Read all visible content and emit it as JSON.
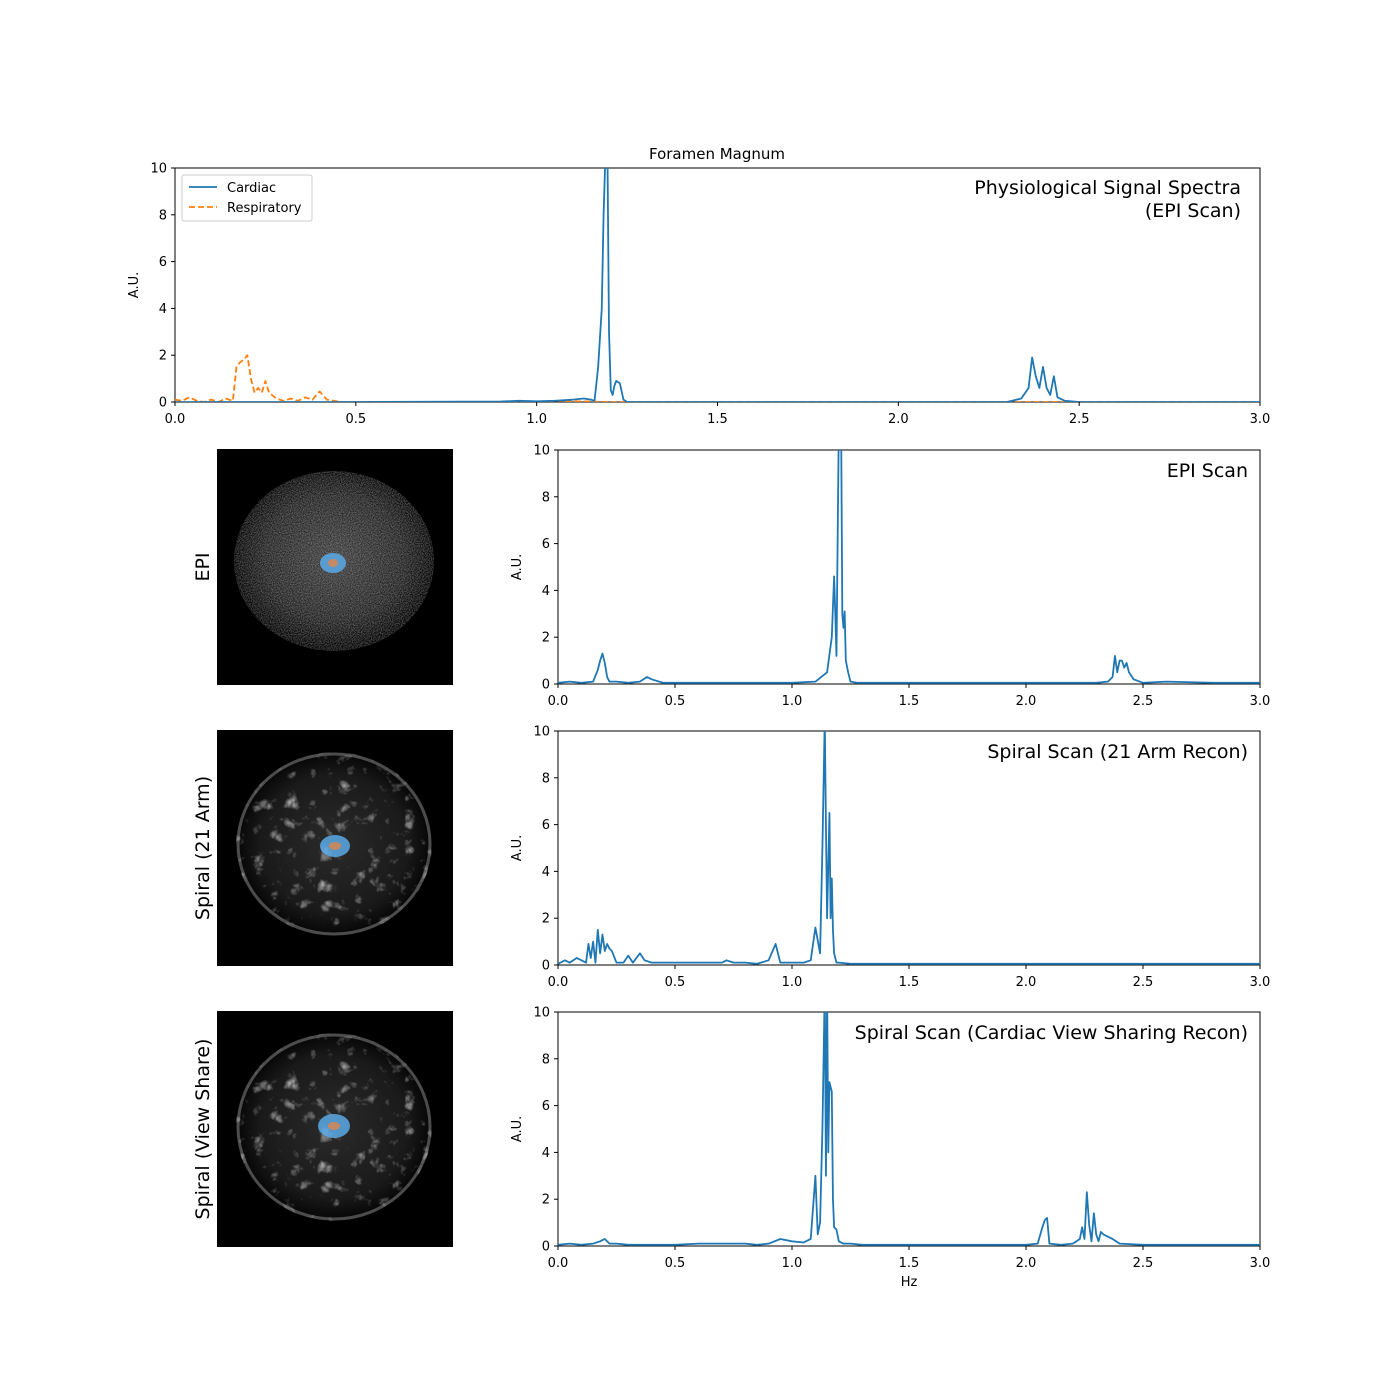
{
  "figure_title": "Foramen Magnum",
  "colors": {
    "cardiac": "#1f77b4",
    "respiratory": "#ff7f0e",
    "roi": "#5aa9e6",
    "roi_center": "#e0864a"
  },
  "chart_data": [
    {
      "type": "line",
      "title": "Foramen Magnum",
      "annotation": [
        "Physiological Signal Spectra",
        "(EPI Scan)"
      ],
      "xlabel": "",
      "ylabel": "A.U.",
      "xlim": [
        0,
        3.0
      ],
      "ylim": [
        0,
        10
      ],
      "xticks": [
        "0.0",
        "0.5",
        "1.0",
        "1.5",
        "2.0",
        "2.5",
        "3.0"
      ],
      "yticks": [
        "0",
        "2",
        "4",
        "6",
        "8",
        "10"
      ],
      "legend": {
        "placement": "top-left",
        "entries": [
          "Cardiac",
          "Respiratory"
        ]
      },
      "series": [
        {
          "name": "Cardiac",
          "style": "solid",
          "color": "#1f77b4",
          "x": [
            0,
            0.5,
            0.9,
            0.95,
            1.0,
            1.05,
            1.1,
            1.13,
            1.15,
            1.16,
            1.17,
            1.18,
            1.185,
            1.19,
            1.195,
            1.2,
            1.205,
            1.21,
            1.215,
            1.22,
            1.23,
            1.24,
            1.25,
            1.3,
            1.5,
            2.0,
            2.3,
            2.34,
            2.36,
            2.37,
            2.38,
            2.39,
            2.4,
            2.41,
            2.42,
            2.43,
            2.44,
            2.46,
            2.5,
            3.0
          ],
          "y": [
            0,
            0,
            0.02,
            0.05,
            0.03,
            0.05,
            0.1,
            0.15,
            0.1,
            0.05,
            1.5,
            4,
            8,
            10.5,
            12,
            3,
            0.5,
            0.3,
            0.7,
            0.9,
            0.8,
            0.1,
            0,
            0,
            0,
            0,
            0,
            0.15,
            0.6,
            1.9,
            1.1,
            0.6,
            1.5,
            0.6,
            0.3,
            1.1,
            0.2,
            0.05,
            0,
            0
          ]
        },
        {
          "name": "Respiratory",
          "style": "dashed",
          "color": "#ff7f0e",
          "x": [
            0,
            0.02,
            0.04,
            0.06,
            0.08,
            0.1,
            0.12,
            0.14,
            0.16,
            0.17,
            0.18,
            0.19,
            0.2,
            0.21,
            0.22,
            0.23,
            0.24,
            0.25,
            0.26,
            0.28,
            0.3,
            0.32,
            0.34,
            0.36,
            0.38,
            0.4,
            0.42,
            0.44,
            0.46,
            0.5,
            1.0,
            1.05,
            1.2,
            1.3,
            3.0
          ],
          "y": [
            0.1,
            0.05,
            0.2,
            0.05,
            0,
            0.1,
            0,
            0.15,
            0.05,
            1.5,
            1.7,
            1.8,
            2.0,
            1.0,
            0.4,
            0.6,
            0.4,
            0.9,
            0.4,
            0.15,
            0.05,
            0.15,
            0.05,
            0.2,
            0.1,
            0.45,
            0.1,
            0.05,
            0,
            0,
            0,
            0.05,
            0,
            0,
            0
          ]
        }
      ]
    },
    {
      "type": "line",
      "panel_label": "EPI",
      "annotation": [
        "EPI Scan"
      ],
      "xlabel": "",
      "ylabel": "A.U.",
      "xlim": [
        0,
        3.0
      ],
      "ylim": [
        0,
        10
      ],
      "xticks": [
        "0.0",
        "0.5",
        "1.0",
        "1.5",
        "2.0",
        "2.5",
        "3.0"
      ],
      "yticks": [
        "0",
        "2",
        "4",
        "6",
        "8",
        "10"
      ],
      "series": [
        {
          "color": "#1f77b4",
          "x": [
            0,
            0.05,
            0.1,
            0.15,
            0.17,
            0.18,
            0.19,
            0.2,
            0.21,
            0.22,
            0.25,
            0.3,
            0.35,
            0.38,
            0.4,
            0.45,
            0.5,
            0.7,
            0.9,
            1.0,
            1.1,
            1.15,
            1.17,
            1.18,
            1.185,
            1.19,
            1.2,
            1.21,
            1.215,
            1.22,
            1.225,
            1.23,
            1.24,
            1.25,
            1.28,
            1.35,
            1.5,
            2.0,
            2.3,
            2.35,
            2.37,
            2.38,
            2.39,
            2.4,
            2.41,
            2.42,
            2.43,
            2.44,
            2.46,
            2.5,
            2.6,
            2.8,
            3.0
          ],
          "y": [
            0.05,
            0.1,
            0.05,
            0.1,
            0.6,
            1.0,
            1.3,
            0.9,
            0.3,
            0.1,
            0.1,
            0.05,
            0.1,
            0.3,
            0.2,
            0.05,
            0.05,
            0.05,
            0.05,
            0.05,
            0.1,
            0.5,
            2.0,
            4.6,
            3.0,
            1.2,
            11,
            11,
            3.0,
            2.4,
            3.1,
            1.0,
            0.5,
            0.1,
            0.05,
            0.05,
            0.05,
            0.05,
            0.05,
            0.1,
            0.3,
            1.2,
            0.5,
            1.0,
            1.0,
            0.7,
            0.9,
            0.5,
            0.2,
            0.05,
            0.1,
            0.05,
            0.05
          ]
        }
      ]
    },
    {
      "type": "line",
      "panel_label": "Spiral (21 Arm)",
      "annotation": [
        "Spiral Scan (21 Arm Recon)"
      ],
      "xlabel": "",
      "ylabel": "A.U.",
      "xlim": [
        0,
        3.0
      ],
      "ylim": [
        0,
        10
      ],
      "xticks": [
        "0.0",
        "0.5",
        "1.0",
        "1.5",
        "2.0",
        "2.5",
        "3.0"
      ],
      "yticks": [
        "0",
        "2",
        "4",
        "6",
        "8",
        "10"
      ],
      "series": [
        {
          "color": "#1f77b4",
          "x": [
            0,
            0.03,
            0.05,
            0.08,
            0.1,
            0.12,
            0.13,
            0.14,
            0.15,
            0.16,
            0.17,
            0.18,
            0.19,
            0.2,
            0.21,
            0.22,
            0.23,
            0.25,
            0.28,
            0.3,
            0.32,
            0.35,
            0.37,
            0.4,
            0.45,
            0.5,
            0.6,
            0.7,
            0.72,
            0.75,
            0.8,
            0.85,
            0.9,
            0.93,
            0.95,
            1.0,
            1.05,
            1.08,
            1.1,
            1.12,
            1.13,
            1.14,
            1.145,
            1.15,
            1.16,
            1.165,
            1.17,
            1.175,
            1.18,
            1.19,
            1.2,
            1.25,
            1.3,
            1.5,
            2.0,
            2.5,
            3.0
          ],
          "y": [
            0.05,
            0.2,
            0.1,
            0.3,
            0.2,
            0.1,
            0.9,
            0.3,
            1.0,
            0.1,
            1.5,
            0.5,
            1.3,
            0.6,
            0.9,
            0.7,
            0.6,
            0.1,
            0.1,
            0.4,
            0.1,
            0.5,
            0.2,
            0.1,
            0.1,
            0.1,
            0.1,
            0.1,
            0.2,
            0.1,
            0.1,
            0.05,
            0.2,
            0.9,
            0.1,
            0.1,
            0.1,
            0.2,
            1.6,
            0.5,
            5,
            10.5,
            6,
            2,
            6.5,
            2,
            3.7,
            1.5,
            0.5,
            0.1,
            0.1,
            0.05,
            0.05,
            0.05,
            0.05,
            0.05,
            0.05
          ]
        }
      ]
    },
    {
      "type": "line",
      "panel_label": "Spiral (View Share)",
      "annotation": [
        "Spiral Scan (Cardiac View Sharing Recon)"
      ],
      "xlabel": "Hz",
      "ylabel": "A.U.",
      "xlim": [
        0,
        3.0
      ],
      "ylim": [
        0,
        10
      ],
      "xticks": [
        "0.0",
        "0.5",
        "1.0",
        "1.5",
        "2.0",
        "2.5",
        "3.0"
      ],
      "yticks": [
        "0",
        "2",
        "4",
        "6",
        "8",
        "10"
      ],
      "series": [
        {
          "color": "#1f77b4",
          "x": [
            0,
            0.05,
            0.1,
            0.15,
            0.18,
            0.2,
            0.22,
            0.25,
            0.3,
            0.4,
            0.5,
            0.6,
            0.7,
            0.8,
            0.85,
            0.9,
            0.95,
            1.0,
            1.05,
            1.08,
            1.1,
            1.11,
            1.12,
            1.13,
            1.14,
            1.145,
            1.15,
            1.155,
            1.16,
            1.17,
            1.175,
            1.18,
            1.19,
            1.2,
            1.22,
            1.25,
            1.3,
            1.5,
            1.8,
            2.0,
            2.05,
            2.07,
            2.08,
            2.09,
            2.1,
            2.15,
            2.2,
            2.23,
            2.24,
            2.25,
            2.26,
            2.27,
            2.28,
            2.29,
            2.3,
            2.31,
            2.32,
            2.33,
            2.35,
            2.37,
            2.4,
            2.5,
            3.0
          ],
          "y": [
            0.05,
            0.1,
            0.05,
            0.1,
            0.2,
            0.3,
            0.1,
            0.1,
            0.05,
            0.05,
            0.05,
            0.1,
            0.1,
            0.1,
            0.05,
            0.1,
            0.3,
            0.2,
            0.15,
            0.3,
            3.0,
            0.5,
            1.0,
            5,
            11,
            3,
            11,
            4,
            7,
            6.6,
            2,
            0.8,
            0.7,
            0.2,
            0.1,
            0.1,
            0.05,
            0.05,
            0.05,
            0.05,
            0.1,
            0.8,
            1.1,
            1.2,
            0.1,
            0.05,
            0.1,
            0.3,
            0.8,
            0.3,
            2.3,
            0.9,
            0.2,
            1.4,
            0.5,
            0.2,
            0.6,
            0.5,
            0.4,
            0.3,
            0.1,
            0.05,
            0.05
          ]
        }
      ]
    }
  ]
}
